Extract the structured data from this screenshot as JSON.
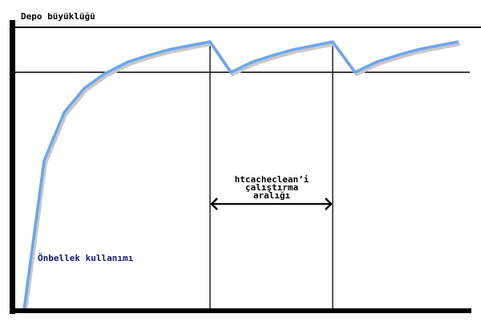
{
  "labels": {
    "y_axis": "Depo büyüklüğü",
    "interval_line1": "htcacheclean’i",
    "interval_line2": "çalıştırma",
    "interval_line3": "aralığı",
    "usage": "Önbellek kullanımı"
  },
  "colors": {
    "curve": "#6aa6ee",
    "axes": "#000000",
    "usage_label": "#1a1a66"
  }
}
